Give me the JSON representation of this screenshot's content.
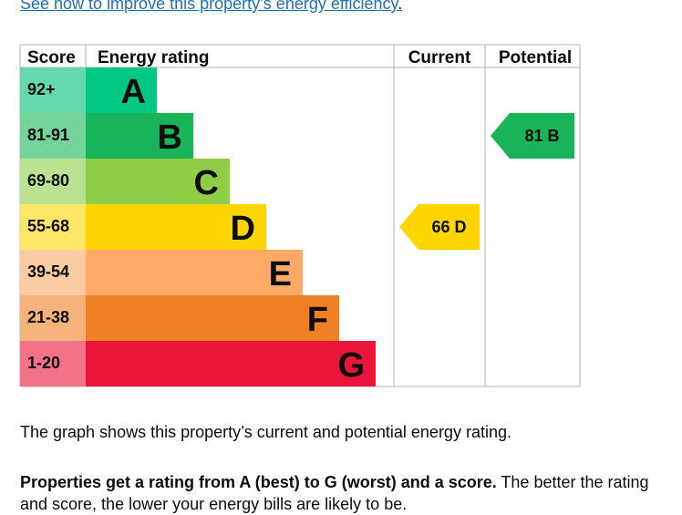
{
  "link": {
    "text": "See how to improve this property’s energy efficiency",
    "trail": "."
  },
  "chart_data": {
    "type": "bar",
    "headers": {
      "score": "Score",
      "rating": "Energy rating",
      "current": "Current",
      "potential": "Potential"
    },
    "bands": [
      {
        "range": "92+",
        "letter": "A",
        "color": "#00c781",
        "light": "#66d9ac"
      },
      {
        "range": "81-91",
        "letter": "B",
        "color": "#19b459",
        "light": "#75d29b"
      },
      {
        "range": "69-80",
        "letter": "C",
        "color": "#8dce46",
        "light": "#bbe290"
      },
      {
        "range": "55-68",
        "letter": "D",
        "color": "#ffd500",
        "light": "#ffe666"
      },
      {
        "range": "39-54",
        "letter": "E",
        "color": "#fcaa65",
        "light": "#fdcca3"
      },
      {
        "range": "21-38",
        "letter": "F",
        "color": "#ef8023",
        "light": "#f5b37b"
      },
      {
        "range": "1-20",
        "letter": "G",
        "color": "#e9153b",
        "light": "#f27389"
      }
    ],
    "current": {
      "score": 66,
      "letter": "D"
    },
    "potential": {
      "score": 81,
      "letter": "B"
    }
  },
  "text": {
    "p1": "The graph shows this property’s current and potential energy rating.",
    "p2_bold": "Properties get a rating from A (best) to G (worst) and a score.",
    "p2_rest": " The better the rating and score, the lower your energy bills are likely to be."
  }
}
